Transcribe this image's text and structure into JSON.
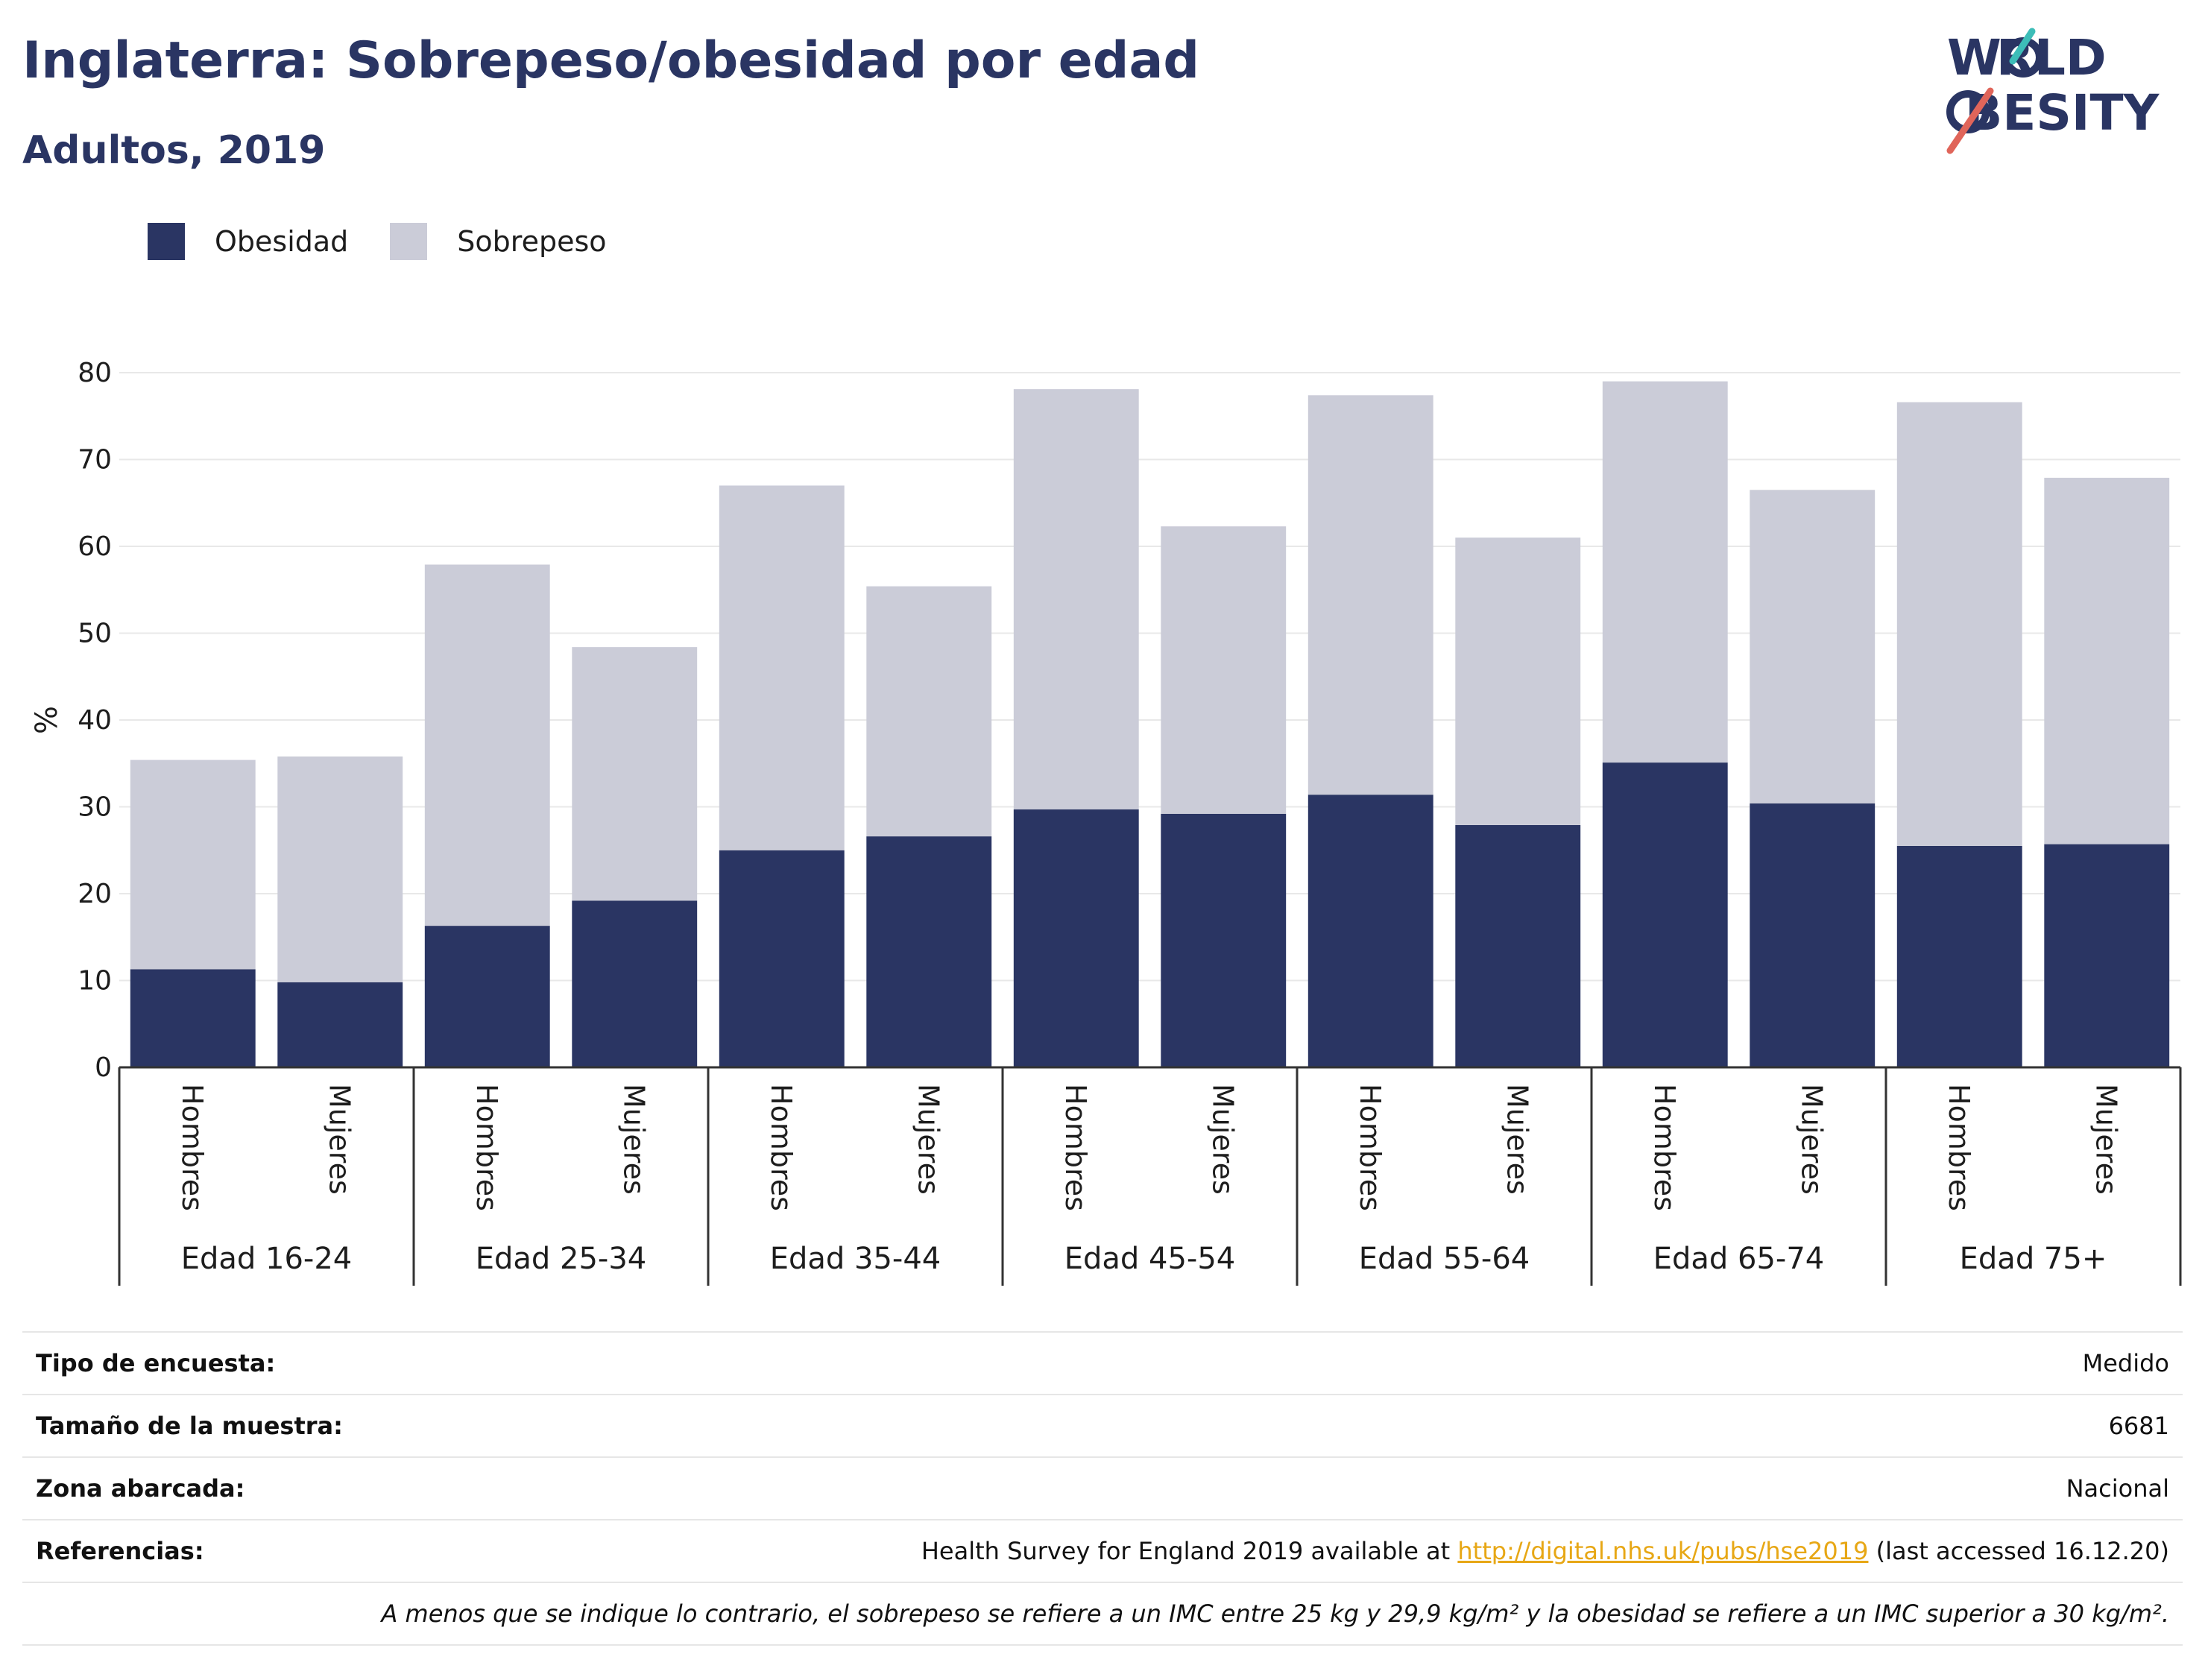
{
  "header": {
    "title": "Inglaterra: Sobrepeso/obesidad por edad",
    "subtitle": "Adultos, 2019"
  },
  "logo": {
    "line1": "WORLD",
    "line2": "OBESITY"
  },
  "colors": {
    "obesity": "#2a3563",
    "overweight": "#cbccd8",
    "accent_red": "#e0655a",
    "accent_teal": "#3dbdb8",
    "link": "#e7a715"
  },
  "legend": [
    {
      "label": "Obesidad",
      "color": "#2a3563"
    },
    {
      "label": "Sobrepeso",
      "color": "#cbccd8"
    }
  ],
  "chart_data": {
    "type": "bar",
    "stacked": true,
    "ylabel": "%",
    "ylim": [
      0,
      80
    ],
    "yticks": [
      0,
      10,
      20,
      30,
      40,
      50,
      60,
      70,
      80
    ],
    "grid": true,
    "legend_position": "top-left",
    "groups": [
      "Edad 16-24",
      "Edad 25-34",
      "Edad 35-44",
      "Edad 45-54",
      "Edad 55-64",
      "Edad 65-74",
      "Edad 75+"
    ],
    "subcategories": [
      "Hombres",
      "Mujeres"
    ],
    "series": [
      {
        "name": "Obesidad",
        "values": [
          11.3,
          9.8,
          16.3,
          19.2,
          25.0,
          26.6,
          29.7,
          29.2,
          31.4,
          27.9,
          35.1,
          30.4,
          25.5,
          25.7
        ]
      },
      {
        "name": "Sobrepeso",
        "values": [
          24.1,
          26.0,
          41.6,
          29.2,
          42.0,
          28.8,
          48.4,
          33.1,
          46.0,
          33.1,
          43.9,
          36.1,
          51.1,
          42.2
        ]
      }
    ],
    "totals": [
      35.4,
      35.8,
      57.9,
      48.4,
      67.0,
      55.4,
      78.1,
      62.3,
      77.4,
      61.0,
      79.0,
      66.5,
      76.6,
      67.9
    ]
  },
  "info": {
    "rows": [
      {
        "key": "Tipo de encuesta:",
        "value": "Medido"
      },
      {
        "key": "Tamaño de la muestra:",
        "value": "6681"
      },
      {
        "key": "Zona abarcada:",
        "value": "Nacional"
      }
    ],
    "references": {
      "key": "Referencias:",
      "text_before": "Health Survey for England 2019 available at ",
      "link": "http://digital.nhs.uk/pubs/hse2019",
      "text_after": " (last accessed 16.12.20)"
    },
    "note": "A menos que se indique lo contrario, el sobrepeso se refiere a un IMC entre 25 kg y 29,9 kg/m² y la obesidad se refiere a un IMC superior a 30 kg/m²."
  }
}
